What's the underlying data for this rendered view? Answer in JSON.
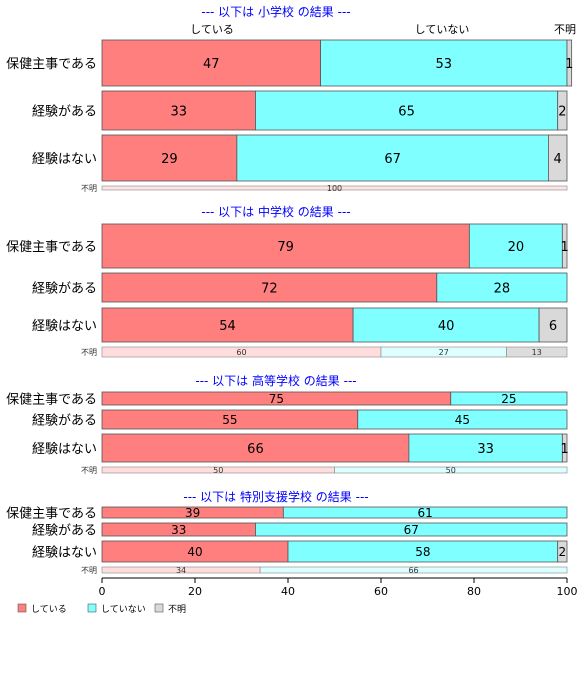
{
  "colors": {
    "yes": "#FF7F7F",
    "no": "#7FFFFF",
    "unknown": "#D9D9D9",
    "title": "#0000FF"
  },
  "chart_data": {
    "type": "bar",
    "stacked": true,
    "orientation": "horizontal",
    "top_header": {
      "yes": "している",
      "no": "していない",
      "unknown": "不明"
    },
    "x_ticks": [
      "0",
      "20",
      "40",
      "60",
      "80",
      "100"
    ],
    "xlim": [
      0,
      100
    ],
    "legend": {
      "placement": "bottom-left",
      "items": [
        "している",
        "していない",
        "不明"
      ]
    },
    "panels": [
      {
        "title": "--- 以下は 小学校 の結果 ---",
        "rows": [
          {
            "label": "保健主事である",
            "values": [
              47,
              53,
              1
            ]
          },
          {
            "label": "経験がある",
            "values": [
              33,
              65,
              2
            ]
          },
          {
            "label": "経験はない",
            "values": [
              29,
              67,
              4
            ]
          }
        ],
        "unknown_row": {
          "label": "不明",
          "values": [
            0,
            0,
            100
          ]
        }
      },
      {
        "title": "--- 以下は 中学校 の結果 ---",
        "rows": [
          {
            "label": "保健主事である",
            "values": [
              79,
              20,
              1
            ]
          },
          {
            "label": "経験がある",
            "values": [
              72,
              28,
              0
            ]
          },
          {
            "label": "経験はない",
            "values": [
              54,
              40,
              6
            ]
          }
        ],
        "unknown_row": {
          "label": "不明",
          "values": [
            60,
            27,
            13
          ]
        }
      },
      {
        "title": "--- 以下は 高等学校 の結果 ---",
        "rows": [
          {
            "label": "保健主事である",
            "values": [
              75,
              25,
              0
            ]
          },
          {
            "label": "経験がある",
            "values": [
              55,
              45,
              0
            ]
          },
          {
            "label": "経験はない",
            "values": [
              66,
              33,
              1
            ]
          }
        ],
        "unknown_row": {
          "label": "不明",
          "values": [
            50,
            50,
            0
          ]
        }
      },
      {
        "title": "--- 以下は 特別支援学校 の結果 ---",
        "rows": [
          {
            "label": "保健主事である",
            "values": [
              39,
              61,
              0
            ]
          },
          {
            "label": "経験がある",
            "values": [
              33,
              67,
              0
            ]
          },
          {
            "label": "経験はない",
            "values": [
              40,
              58,
              2
            ]
          }
        ],
        "unknown_row": {
          "label": "不明",
          "values": [
            34,
            66,
            0
          ]
        }
      }
    ]
  }
}
